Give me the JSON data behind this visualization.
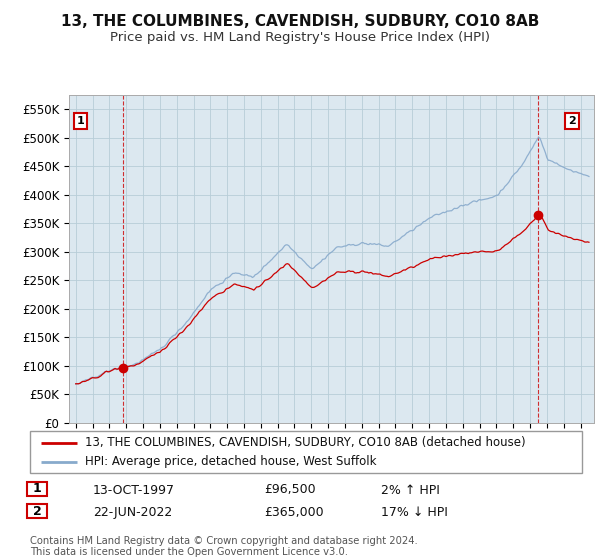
{
  "title": "13, THE COLUMBINES, CAVENDISH, SUDBURY, CO10 8AB",
  "subtitle": "Price paid vs. HM Land Registry's House Price Index (HPI)",
  "ylim": [
    0,
    575000
  ],
  "yticks": [
    0,
    50000,
    100000,
    150000,
    200000,
    250000,
    300000,
    350000,
    400000,
    450000,
    500000,
    550000
  ],
  "ytick_labels": [
    "£0",
    "£50K",
    "£100K",
    "£150K",
    "£200K",
    "£250K",
    "£300K",
    "£350K",
    "£400K",
    "£450K",
    "£500K",
    "£550K"
  ],
  "background_color": "#ffffff",
  "plot_bg_color": "#dce8f0",
  "grid_color": "#b8cdd8",
  "sale1_date": 1997.79,
  "sale1_price": 96500,
  "sale1_label": "1",
  "sale2_date": 2022.47,
  "sale2_price": 365000,
  "sale2_label": "2",
  "line1_color": "#cc0000",
  "line2_color": "#88aacc",
  "marker_color": "#cc0000",
  "vline_color": "#cc0000",
  "legend_line1": "13, THE COLUMBINES, CAVENDISH, SUDBURY, CO10 8AB (detached house)",
  "legend_line2": "HPI: Average price, detached house, West Suffolk",
  "table_row1_num": "1",
  "table_row1_date": "13-OCT-1997",
  "table_row1_price": "£96,500",
  "table_row1_hpi": "2% ↑ HPI",
  "table_row2_num": "2",
  "table_row2_date": "22-JUN-2022",
  "table_row2_price": "£365,000",
  "table_row2_hpi": "17% ↓ HPI",
  "footer": "Contains HM Land Registry data © Crown copyright and database right 2024.\nThis data is licensed under the Open Government Licence v3.0.",
  "title_fontsize": 11,
  "subtitle_fontsize": 9.5,
  "tick_fontsize": 8.5,
  "legend_fontsize": 8.5,
  "table_fontsize": 9
}
